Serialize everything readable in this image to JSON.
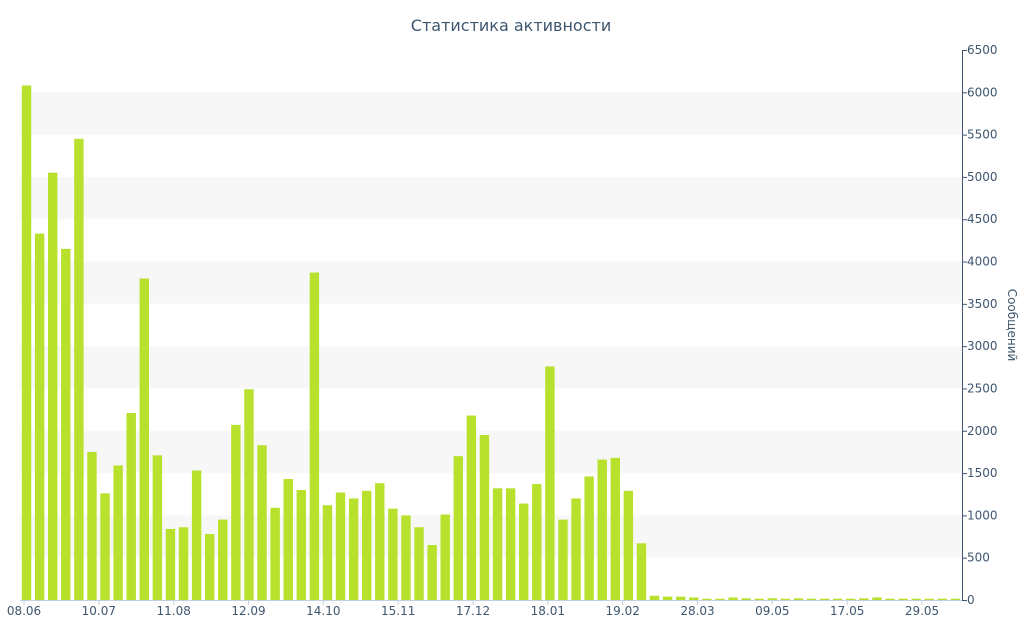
{
  "chart_data": {
    "type": "bar",
    "title": "Статистика активности",
    "xlabel": "",
    "ylabel": "Сообщений",
    "y_axis_side": "right",
    "ylim": [
      0,
      6500
    ],
    "y_ticks": [
      0,
      500,
      1000,
      1500,
      2000,
      2500,
      3000,
      3500,
      4000,
      4500,
      5000,
      5500,
      6000,
      6500
    ],
    "x_tick_labels": [
      "08.06",
      "10.07",
      "11.08",
      "12.09",
      "14.10",
      "15.11",
      "17.12",
      "18.01",
      "19.02",
      "28.03",
      "09.05",
      "17.05",
      "29.05"
    ],
    "grid": "alternating horizontal bands",
    "legend": "none",
    "colors": {
      "bar": "#b8e12e",
      "text": "#3e576f",
      "band": "#f7f7f7",
      "axis": "#3e576f"
    },
    "values": [
      6080,
      4330,
      5050,
      4150,
      5450,
      1750,
      1260,
      1590,
      2210,
      3800,
      1710,
      840,
      860,
      1530,
      780,
      950,
      2070,
      2490,
      1830,
      1090,
      1430,
      1300,
      3870,
      1120,
      1270,
      1200,
      1290,
      1380,
      1080,
      1000,
      860,
      650,
      1010,
      1700,
      2180,
      1950,
      1320,
      1320,
      1140,
      1370,
      2760,
      950,
      1200,
      1460,
      1660,
      1680,
      1290,
      670,
      50,
      40,
      40,
      30,
      15,
      15,
      30,
      20,
      15,
      20,
      15,
      20,
      15,
      15,
      15,
      15,
      20,
      30,
      15,
      15,
      15,
      15,
      15,
      15
    ]
  }
}
